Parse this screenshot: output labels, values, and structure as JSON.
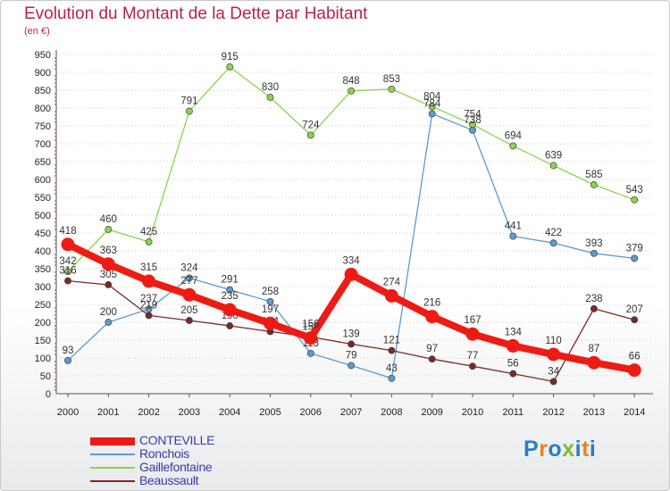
{
  "header": {
    "title": "Evolution du Montant de la Dette par Habitant",
    "subtitle": "(en €)"
  },
  "logo": {
    "text": "Proxiti",
    "letter_colors": [
      "#2a7ec2",
      "#e2861d",
      "#2a7ec2",
      "#7fbd2f",
      "#2a7ec2",
      "#e2861d",
      "#2a7ec2"
    ]
  },
  "chart_data": {
    "type": "line",
    "title": "Evolution du Montant de la Dette par Habitant",
    "subtitle": "(en €)",
    "xlabel": "",
    "ylabel": "",
    "categories": [
      "2000",
      "2001",
      "2002",
      "2003",
      "2004",
      "2005",
      "2006",
      "2007",
      "2008",
      "2009",
      "2010",
      "2011",
      "2012",
      "2013",
      "2014"
    ],
    "y_ticks": [
      0,
      50,
      100,
      150,
      200,
      250,
      300,
      350,
      400,
      450,
      500,
      550,
      600,
      650,
      700,
      750,
      800,
      850,
      900,
      950
    ],
    "ylim": [
      0,
      950
    ],
    "grid": "horizontal dotted",
    "legend_position": "bottom-left",
    "series": [
      {
        "name": "Gaillefontaine",
        "color": "#8ed14f",
        "emphasis": false,
        "values": [
          342,
          460,
          425,
          791,
          915,
          830,
          724,
          848,
          853,
          804,
          754,
          694,
          639,
          585,
          543
        ],
        "labels": [
          "342",
          "460",
          "425",
          "791",
          "915",
          "830",
          "724",
          "848",
          "853",
          "804",
          "754",
          "694",
          "639",
          "585",
          "543"
        ]
      },
      {
        "name": "Ronchois",
        "color": "#5b9bd0",
        "emphasis": false,
        "values": [
          93,
          200,
          237,
          324,
          291,
          258,
          113,
          79,
          43,
          784,
          738,
          441,
          422,
          393,
          379
        ],
        "labels": [
          "93",
          "200",
          "237",
          "324",
          "291",
          "258",
          "113",
          "79",
          "43",
          "784",
          "738",
          "441",
          "422",
          "393",
          "379"
        ]
      },
      {
        "name": "Beaussault",
        "color": "#7a2828",
        "emphasis": false,
        "values": [
          316,
          305,
          219,
          205,
          190,
          174,
          159,
          139,
          121,
          97,
          77,
          56,
          34,
          238,
          207
        ],
        "labels": [
          "316",
          "305",
          "219",
          "205",
          "190",
          "174",
          "159",
          "139",
          "121",
          "97",
          "77",
          "56",
          "34",
          "238",
          "207"
        ]
      },
      {
        "name": "CONTEVILLE",
        "color": "#ee1b14",
        "emphasis": true,
        "values": [
          418,
          363,
          315,
          277,
          235,
          197,
          156,
          334,
          274,
          216,
          167,
          134,
          110,
          87,
          66
        ],
        "labels": [
          "418",
          "363",
          "315",
          "277",
          "235",
          "197",
          "156",
          "334",
          "274",
          "216",
          "167",
          "134",
          "110",
          "87",
          "66"
        ]
      }
    ],
    "legend_order": [
      "CONTEVILLE",
      "Ronchois",
      "Gaillefontaine",
      "Beaussault"
    ]
  }
}
